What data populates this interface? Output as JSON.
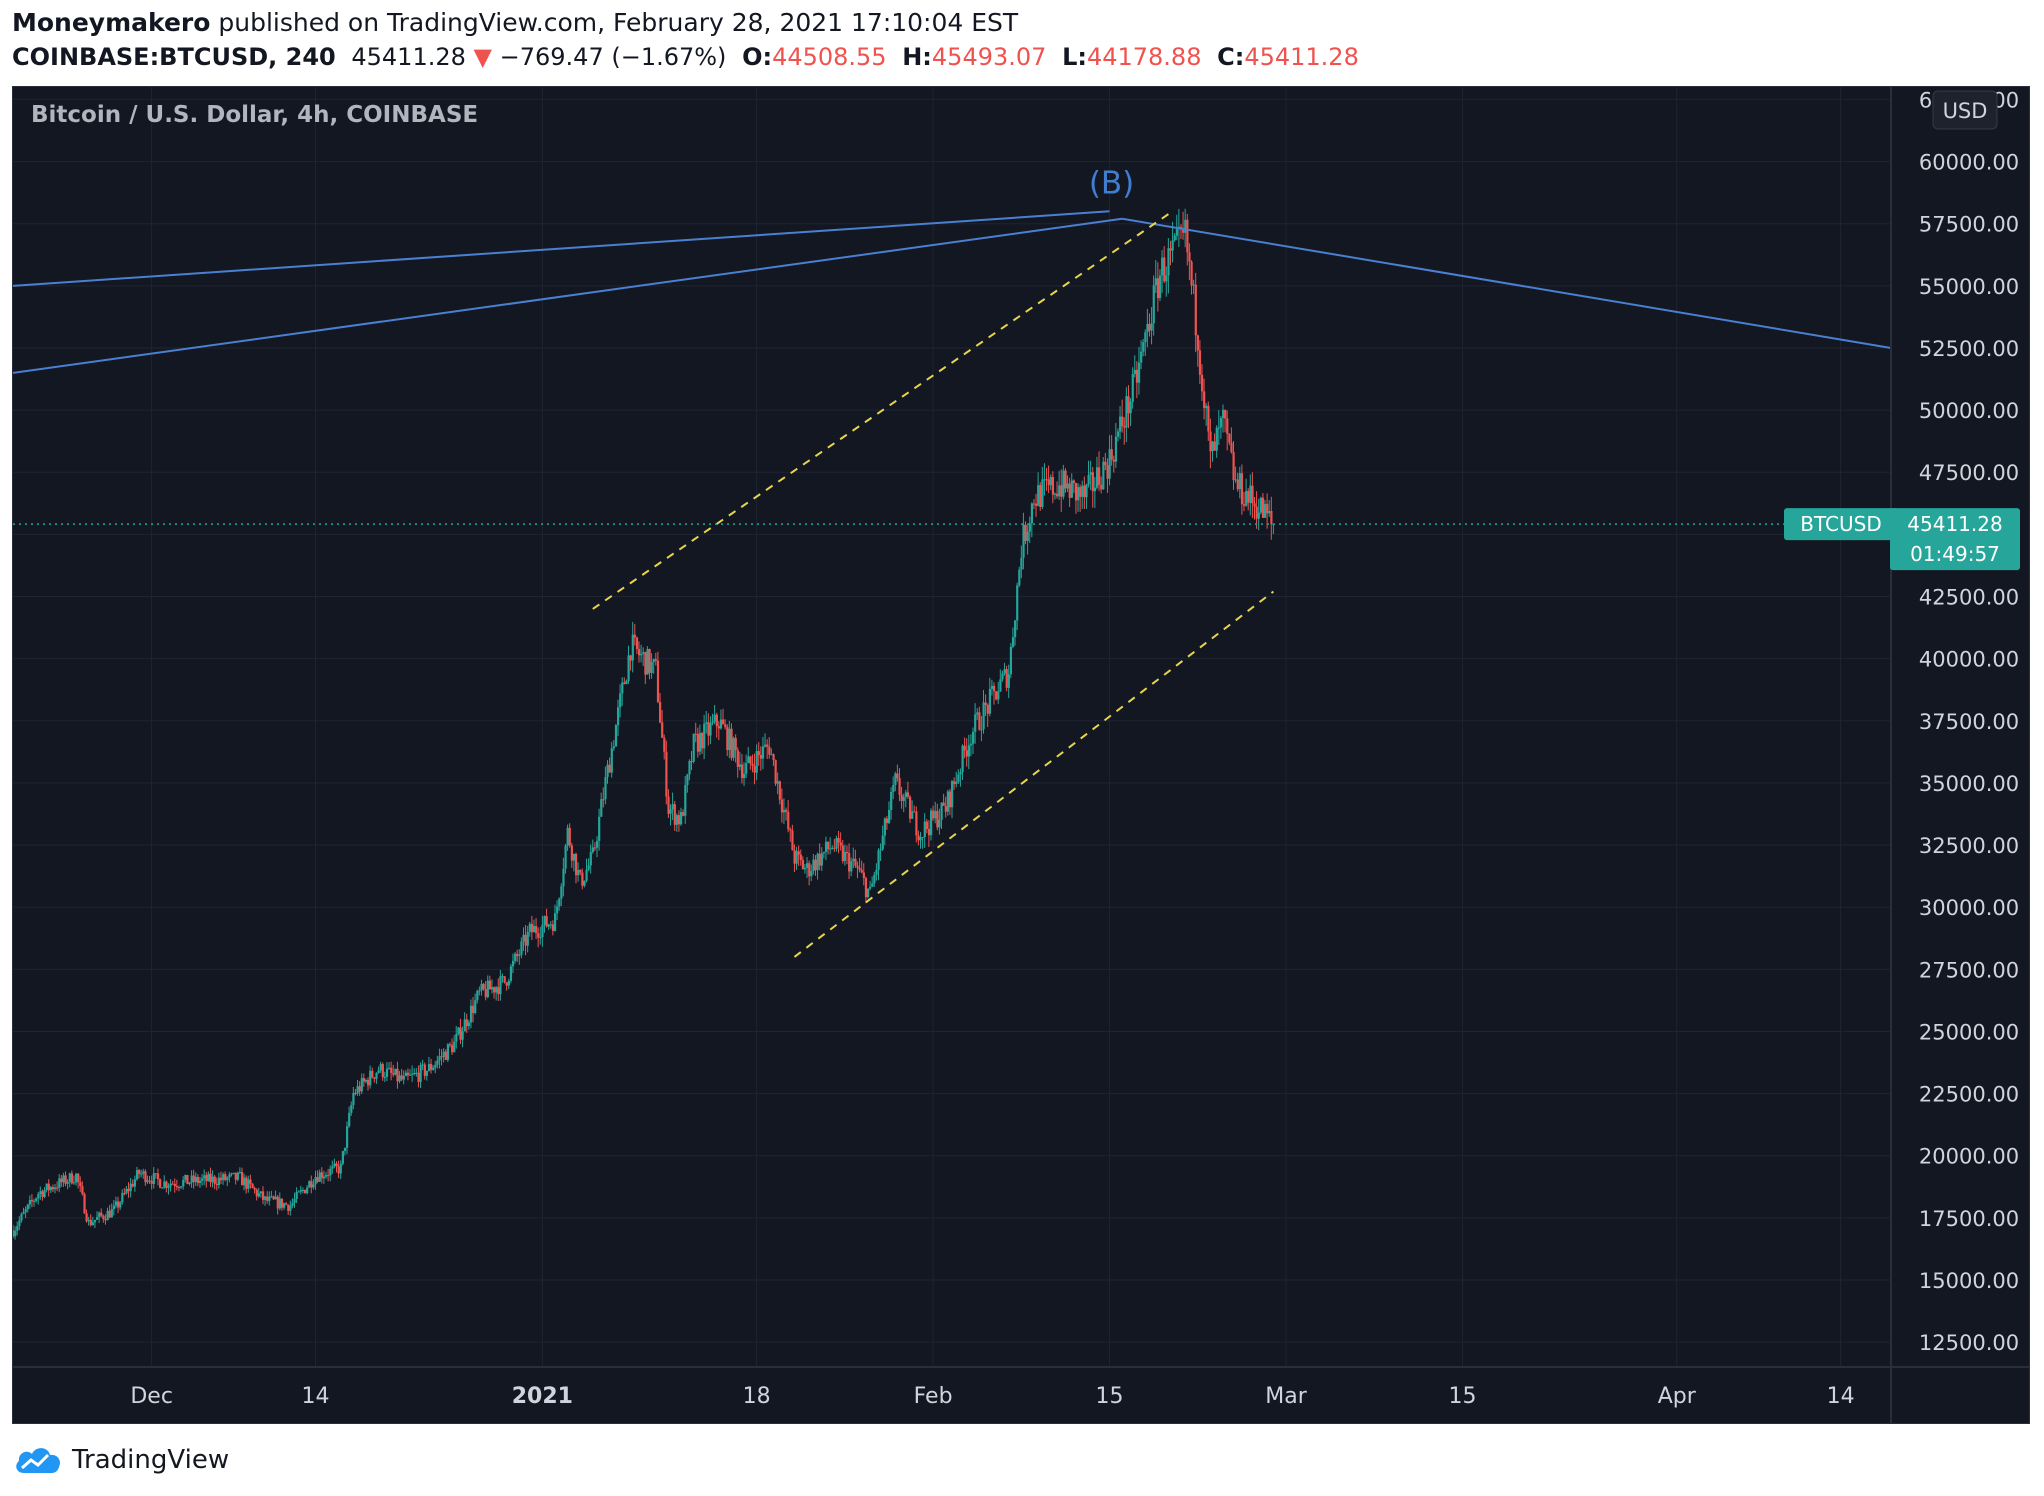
{
  "header": {
    "author": "Moneymakero",
    "published_text": "published on TradingView.com, February 28, 2021 17:10:04 EST",
    "symbol": "COINBASE:BTCUSD, 240",
    "last_price": "45411.28",
    "change_arrow": "▼",
    "change": "−769.47 (−1.67%)",
    "open_label": "O:",
    "open": "44508.55",
    "high_label": "H:",
    "high": "45493.07",
    "low_label": "L:",
    "low": "44178.88",
    "close_label": "C:",
    "close": "45411.28"
  },
  "chart": {
    "title": "Bitcoin / U.S. Dollar, 4h, COINBASE",
    "currency": "USD",
    "pivot_label": "(B)",
    "price_tag": {
      "symbol": "BTCUSD",
      "price": "45411.28",
      "countdown": "01:49:57"
    }
  },
  "colors": {
    "background": "#131722",
    "grid": "#1f2433",
    "axis_text": "#d1d4dc",
    "up": "#26a69a",
    "down": "#ef5350",
    "trend_line": "#4a7fd1",
    "channel": "#e8d44d",
    "price_line": "#26a69a",
    "label_blue": "#3f7ed0"
  },
  "footer": {
    "brand": "TradingView",
    "logo": "tradingview-cloud-logo"
  },
  "chart_data": {
    "type": "candlestick",
    "title": "Bitcoin / U.S. Dollar, 4h, COINBASE",
    "ylim": [
      11500,
      63000
    ],
    "y_ticks": [
      "12500.00",
      "15000.00",
      "17500.00",
      "20000.00",
      "22500.00",
      "25000.00",
      "27500.00",
      "30000.00",
      "32500.00",
      "35000.00",
      "37500.00",
      "40000.00",
      "42500.00",
      "45000.00",
      "47500.00",
      "50000.00",
      "52500.00",
      "55000.00",
      "57500.00",
      "60000.00",
      "62500.00"
    ],
    "x_range": [
      "2020-11-20",
      "2021-04-18"
    ],
    "x_ticks": [
      {
        "label": "Dec",
        "date": "2020-12-01",
        "bold": false
      },
      {
        "label": "14",
        "date": "2020-12-14",
        "bold": false
      },
      {
        "label": "2021",
        "date": "2021-01-01",
        "bold": true
      },
      {
        "label": "18",
        "date": "2021-01-18",
        "bold": false
      },
      {
        "label": "Feb",
        "date": "2021-02-01",
        "bold": false
      },
      {
        "label": "15",
        "date": "2021-02-15",
        "bold": false
      },
      {
        "label": "Mar",
        "date": "2021-03-01",
        "bold": false
      },
      {
        "label": "15",
        "date": "2021-03-15",
        "bold": false
      },
      {
        "label": "Apr",
        "date": "2021-04-01",
        "bold": false
      },
      {
        "label": "14",
        "date": "2021-04-14",
        "bold": false
      }
    ],
    "current_price": 45411.28,
    "price_path": [
      [
        "2020-11-20",
        17000
      ],
      [
        "2020-11-22",
        18500
      ],
      [
        "2020-11-25",
        19200
      ],
      [
        "2020-11-26",
        17300
      ],
      [
        "2020-11-28",
        17800
      ],
      [
        "2020-11-30",
        19300
      ],
      [
        "2020-12-02",
        18900
      ],
      [
        "2020-12-05",
        19000
      ],
      [
        "2020-12-08",
        19100
      ],
      [
        "2020-12-10",
        18200
      ],
      [
        "2020-12-12",
        18000
      ],
      [
        "2020-12-14",
        19200
      ],
      [
        "2020-12-16",
        19500
      ],
      [
        "2020-12-17",
        22500
      ],
      [
        "2020-12-19",
        23500
      ],
      [
        "2020-12-21",
        23000
      ],
      [
        "2020-12-23",
        23500
      ],
      [
        "2020-12-25",
        24500
      ],
      [
        "2020-12-27",
        26500
      ],
      [
        "2020-12-29",
        27000
      ],
      [
        "2020-12-31",
        29000
      ],
      [
        "2021-01-02",
        29500
      ],
      [
        "2021-01-03",
        33000
      ],
      [
        "2021-01-04",
        31000
      ],
      [
        "2021-01-05",
        32000
      ],
      [
        "2021-01-06",
        35000
      ],
      [
        "2021-01-08",
        40500
      ],
      [
        "2021-01-10",
        39500
      ],
      [
        "2021-01-11",
        34000
      ],
      [
        "2021-01-12",
        33500
      ],
      [
        "2021-01-13",
        36500
      ],
      [
        "2021-01-15",
        37500
      ],
      [
        "2021-01-17",
        35500
      ],
      [
        "2021-01-19",
        36500
      ],
      [
        "2021-01-21",
        32000
      ],
      [
        "2021-01-22",
        31500
      ],
      [
        "2021-01-24",
        32500
      ],
      [
        "2021-01-26",
        31500
      ],
      [
        "2021-01-27",
        30500
      ],
      [
        "2021-01-29",
        35000
      ],
      [
        "2021-01-31",
        33000
      ],
      [
        "2021-02-02",
        34000
      ],
      [
        "2021-02-04",
        37000
      ],
      [
        "2021-02-07",
        39500
      ],
      [
        "2021-02-08",
        44500
      ],
      [
        "2021-02-09",
        46500
      ],
      [
        "2021-02-11",
        47000
      ],
      [
        "2021-02-13",
        46500
      ],
      [
        "2021-02-15",
        48000
      ],
      [
        "2021-02-17",
        51000
      ],
      [
        "2021-02-19",
        55500
      ],
      [
        "2021-02-21",
        57000
      ],
      [
        "2021-02-22",
        53000
      ],
      [
        "2021-02-23",
        48000
      ],
      [
        "2021-02-24",
        49500
      ],
      [
        "2021-02-25",
        47000
      ],
      [
        "2021-02-26",
        46500
      ],
      [
        "2021-02-27",
        46000
      ],
      [
        "2021-02-28",
        45411
      ]
    ],
    "trend_lines": [
      {
        "from": [
          "2020-11-20",
          55000
        ],
        "to": [
          "2021-02-15",
          58000
        ]
      },
      {
        "from": [
          "2020-11-20",
          51500
        ],
        "to": [
          "2021-02-16",
          57700
        ]
      },
      {
        "from": [
          "2021-02-16",
          57700
        ],
        "to": [
          "2021-04-18",
          52500
        ]
      }
    ],
    "channel_lines": [
      {
        "from": [
          "2021-01-05",
          42000
        ],
        "to": [
          "2021-02-20",
          58000
        ]
      },
      {
        "from": [
          "2021-01-21",
          28000
        ],
        "to": [
          "2021-02-28",
          42700
        ]
      }
    ]
  }
}
